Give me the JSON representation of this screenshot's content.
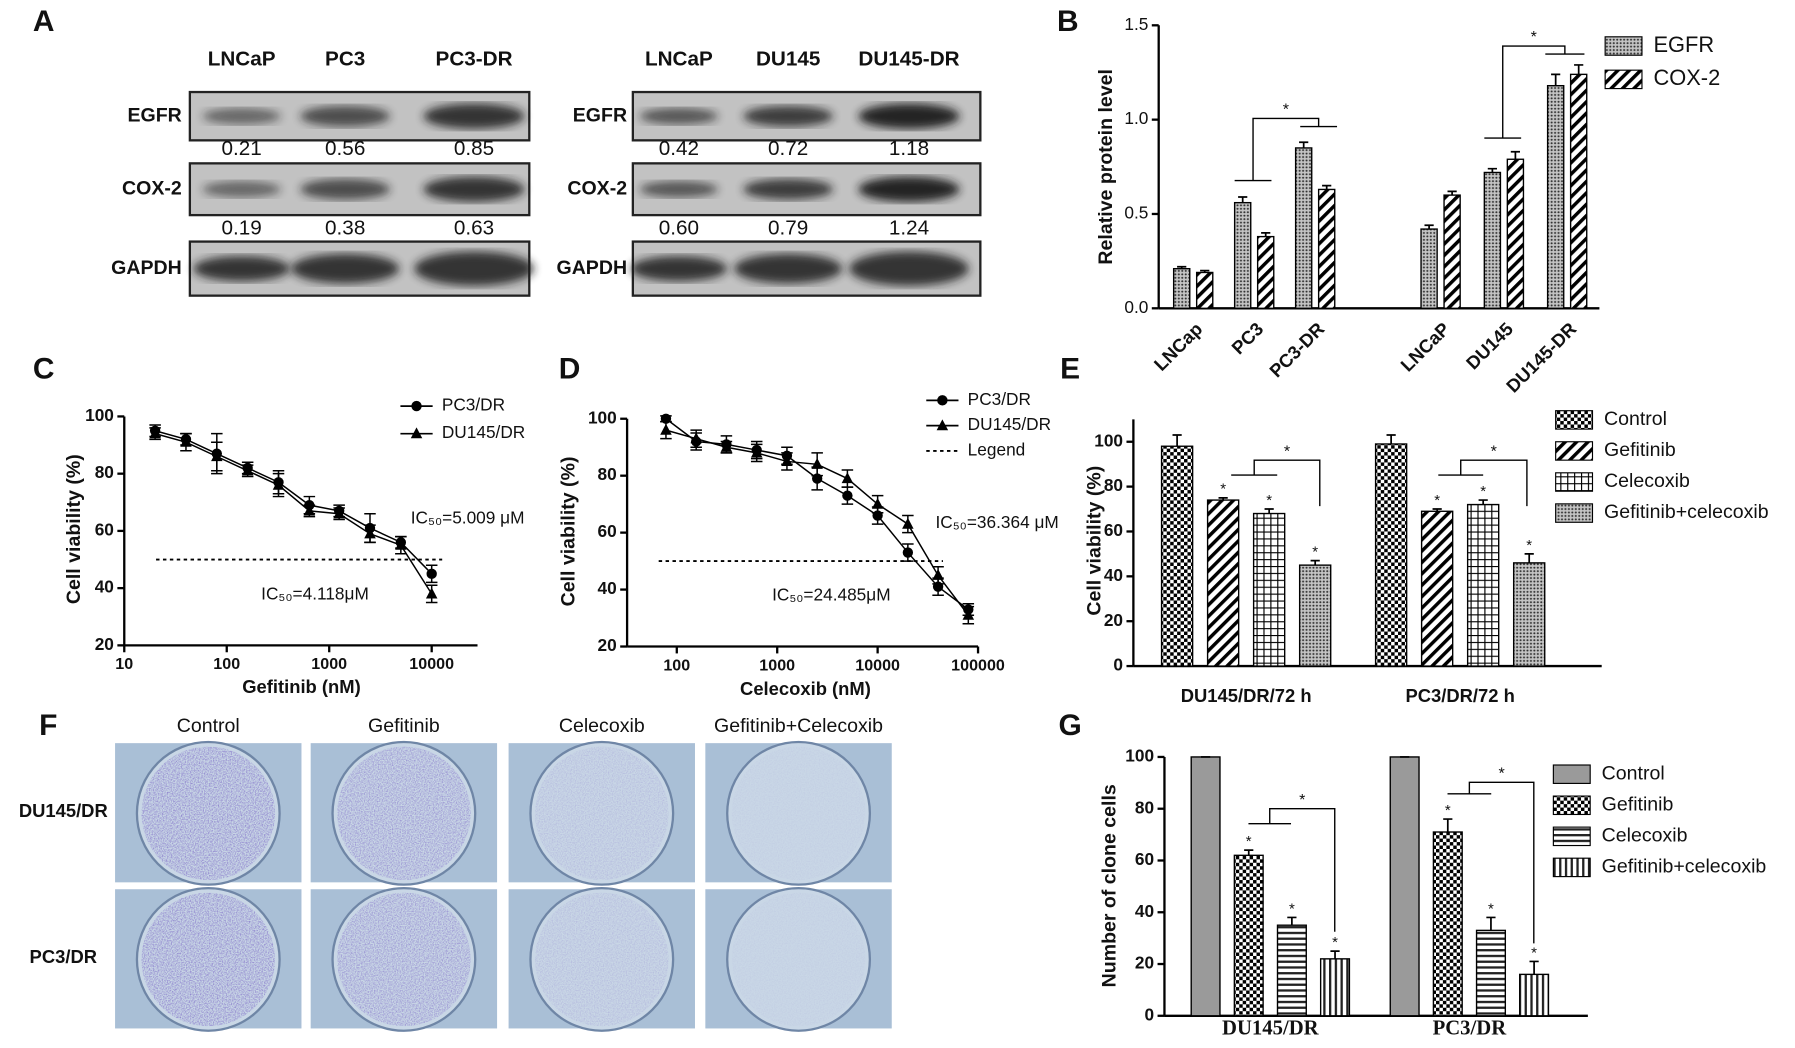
{
  "panel_labels": [
    "A",
    "B",
    "C",
    "D",
    "E",
    "F",
    "G"
  ],
  "blots": [
    {
      "columns": [
        "LNCaP",
        "PC3",
        "PC3-DR"
      ],
      "rows": [
        "EGFR",
        "COX-2",
        "GAPDH"
      ],
      "egfr_levels": [
        "0.21",
        "0.56",
        "0.85"
      ],
      "cox2_levels": [
        "0.19",
        "0.38",
        "0.63"
      ]
    },
    {
      "columns": [
        "LNCaP",
        "DU145",
        "DU145-DR"
      ],
      "rows": [
        "EGFR",
        "COX-2",
        "GAPDH"
      ],
      "egfr_levels": [
        "0.42",
        "0.72",
        "1.18"
      ],
      "cox2_levels": [
        "0.60",
        "0.79",
        "1.24"
      ]
    }
  ],
  "colony": {
    "columns": [
      "Control",
      "Gefitinib",
      "Celecoxib",
      "Gefitinib+Celecoxib"
    ],
    "rows": [
      "DU145/DR",
      "PC3/DR"
    ]
  },
  "chart_data": [
    {
      "type": "bar",
      "ylabel": "Relative protein level",
      "categories": [
        "LNCap",
        "PC3",
        "PC3-DR",
        "LNCaP",
        "DU145",
        "DU145-DR"
      ],
      "series": [
        {
          "name": "EGFR",
          "pattern": "dots",
          "values": [
            0.21,
            0.56,
            0.85,
            0.42,
            0.72,
            1.18
          ],
          "errors": [
            0.01,
            0.03,
            0.03,
            0.02,
            0.02,
            0.06
          ]
        },
        {
          "name": "COX-2",
          "pattern": "hatch",
          "values": [
            0.19,
            0.38,
            0.63,
            0.6,
            0.79,
            1.24
          ],
          "errors": [
            0.01,
            0.02,
            0.02,
            0.02,
            0.04,
            0.05
          ]
        }
      ],
      "ylim": [
        0,
        1.5
      ],
      "yticks": [
        {
          "value": 0,
          "label": "0.0"
        },
        {
          "value": 0.5,
          "label": "0.5"
        },
        {
          "value": 1,
          "label": "1.0"
        },
        {
          "value": 1.5,
          "label": "1.5"
        }
      ],
      "brackets": [
        "*",
        "*"
      ],
      "legend": "upper right"
    },
    {
      "type": "line",
      "xlabel": "Gefitinib (nM)",
      "ylabel": "Cell viability (%)",
      "xscale": "log",
      "x": [
        20,
        40,
        80,
        160,
        320,
        640,
        1250,
        2500,
        5000,
        10000
      ],
      "series": [
        {
          "name": "PC3/DR",
          "marker": "circle",
          "values": [
            95,
            92,
            87,
            82,
            77,
            69,
            67,
            61,
            56,
            45
          ],
          "errors": [
            2,
            2,
            7,
            2,
            4,
            3,
            2,
            5,
            2,
            3
          ]
        },
        {
          "name": "DU145/DR",
          "marker": "triangle",
          "values": [
            94,
            91,
            86,
            81,
            76,
            67,
            66,
            59,
            55,
            38
          ],
          "errors": [
            2,
            3,
            5,
            2,
            4,
            2,
            2,
            3,
            3,
            3
          ]
        }
      ],
      "xlim": [
        10,
        28000
      ],
      "xticks": [
        10,
        100,
        1000,
        10000
      ],
      "ylim": [
        20,
        100
      ],
      "yticks": [
        20,
        40,
        60,
        80,
        100
      ],
      "hline": 50,
      "annotations": [
        "IC₅₀=5.009 μM",
        "IC₅₀=4.118μM"
      ]
    },
    {
      "type": "line",
      "xlabel": "Celecoxib (nM)",
      "ylabel": "Cell viability (%)",
      "xscale": "log",
      "x": [
        78,
        156,
        312,
        625,
        1250,
        2500,
        5000,
        10000,
        20000,
        40000,
        80000
      ],
      "series": [
        {
          "name": "PC3/DR",
          "marker": "circle",
          "values": [
            100,
            92,
            91,
            89,
            87,
            79,
            73,
            66,
            53,
            41,
            33
          ],
          "errors": [
            1,
            3,
            3,
            3,
            3,
            4,
            3,
            3,
            3,
            3,
            2
          ]
        },
        {
          "name": "DU145/DR",
          "marker": "triangle",
          "values": [
            96,
            93,
            90,
            88,
            85,
            84,
            79,
            70,
            63,
            45,
            31
          ],
          "errors": [
            3,
            3,
            2,
            3,
            3,
            4,
            3,
            3,
            3,
            3,
            3
          ]
        }
      ],
      "xlim": [
        32,
        100000
      ],
      "xticks": [
        100,
        1000,
        10000,
        100000
      ],
      "ylim": [
        20,
        100
      ],
      "yticks": [
        20,
        40,
        60,
        80,
        100
      ],
      "hline": 50,
      "hline_name": "Legend",
      "annotations": [
        "IC₅₀=36.364 μM",
        "IC₅₀=24.485μM"
      ]
    },
    {
      "type": "bar",
      "ylabel": "Cell viability (%)",
      "categories": [
        "DU145/DR/72 h",
        "PC3/DR/72 h"
      ],
      "series": [
        {
          "name": "Control",
          "pattern": "checker",
          "values": [
            98,
            99
          ],
          "errors": [
            5,
            4
          ],
          "significant": [
            false,
            false
          ]
        },
        {
          "name": "Gefitinib",
          "pattern": "hatch",
          "values": [
            74,
            69
          ],
          "errors": [
            1,
            1
          ],
          "significant": [
            true,
            true
          ]
        },
        {
          "name": "Celecoxib",
          "pattern": "grid",
          "values": [
            68,
            72
          ],
          "errors": [
            2,
            2
          ],
          "significant": [
            true,
            true
          ]
        },
        {
          "name": "Gefitinib+celecoxib",
          "pattern": "dots",
          "values": [
            45,
            46
          ],
          "errors": [
            2,
            4
          ],
          "significant": [
            true,
            true
          ]
        }
      ],
      "ylim": [
        0,
        110
      ],
      "yticks": [
        0,
        20,
        40,
        60,
        80,
        100
      ],
      "marker": "*",
      "brackets": [
        "*",
        "*"
      ]
    },
    {
      "type": "bar",
      "ylabel": "Number of clone cells",
      "categories": [
        "DU145/DR",
        "PC3/DR"
      ],
      "series": [
        {
          "name": "Control",
          "pattern": "solid",
          "values": [
            100,
            100
          ],
          "errors": [
            0,
            0
          ],
          "significant": [
            false,
            false
          ]
        },
        {
          "name": "Gefitinib",
          "pattern": "checker",
          "values": [
            62,
            71
          ],
          "errors": [
            2,
            5
          ],
          "significant": [
            true,
            true
          ]
        },
        {
          "name": "Celecoxib",
          "pattern": "hlines",
          "values": [
            35,
            33
          ],
          "errors": [
            3,
            5
          ],
          "significant": [
            true,
            true
          ]
        },
        {
          "name": "Gefitinib+celecoxib",
          "pattern": "vlines",
          "values": [
            22,
            16
          ],
          "errors": [
            3,
            5
          ],
          "significant": [
            true,
            true
          ]
        }
      ],
      "ylim": [
        0,
        100
      ],
      "yticks": [
        0,
        20,
        40,
        60,
        80,
        100
      ],
      "marker": "*",
      "brackets": [
        "*",
        "*"
      ]
    }
  ]
}
